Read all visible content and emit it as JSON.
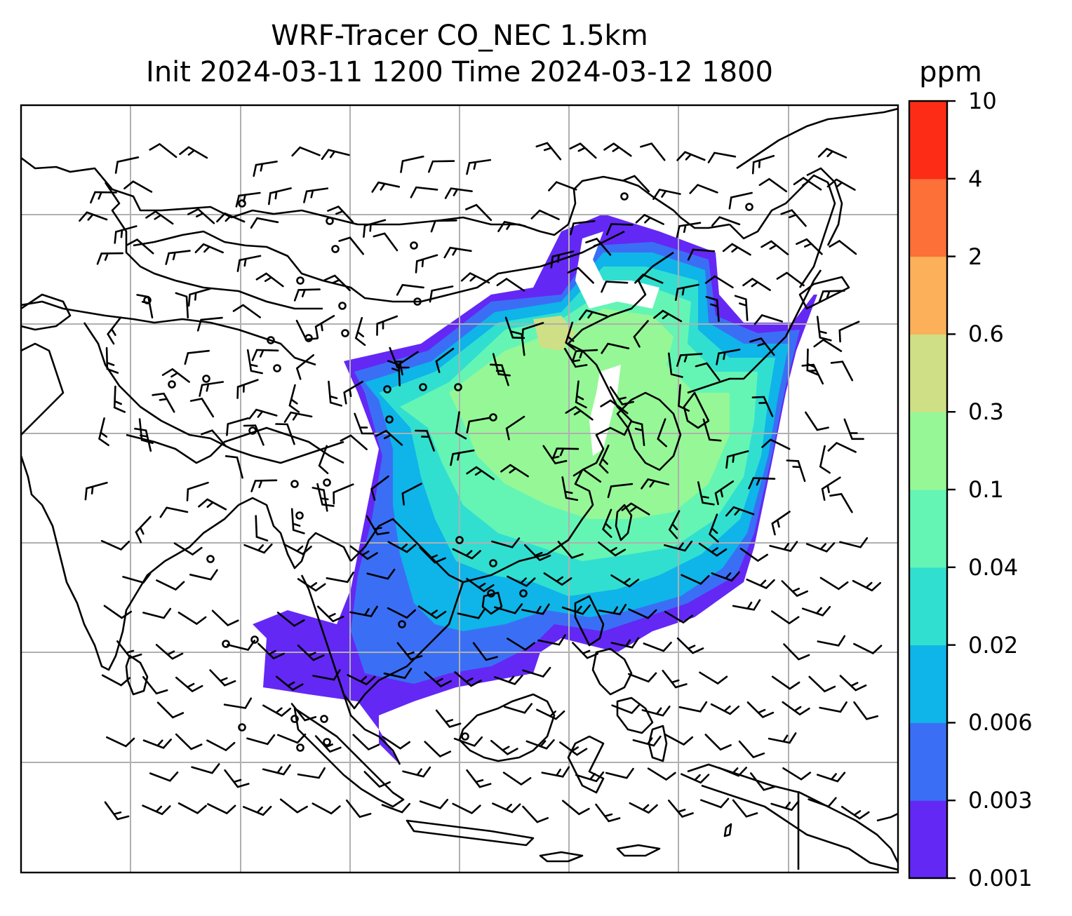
{
  "title": {
    "line1": "WRF-Tracer CO_NEC 1.5km",
    "line2": "Init 2024-03-11 1200 Time 2024-03-12 1800"
  },
  "colorbar": {
    "unit": "ppm",
    "levels": [
      "0.001",
      "0.003",
      "0.006",
      "0.02",
      "0.04",
      "0.1",
      "0.3",
      "0.6",
      "2",
      "4",
      "10"
    ],
    "colors": [
      "#6428f5",
      "#3a6ff5",
      "#0fb4e8",
      "#31dfd0",
      "#64f5b4",
      "#96f796",
      "#cfdf85",
      "#fcb05a",
      "#fd7038",
      "#fc2c16"
    ]
  },
  "map": {
    "gridlines": true,
    "grid_color": "#b0b0b0",
    "coastline_color": "#000000",
    "shaded_field": "CO_NEC tracer concentration",
    "overlay": "wind barbs"
  }
}
